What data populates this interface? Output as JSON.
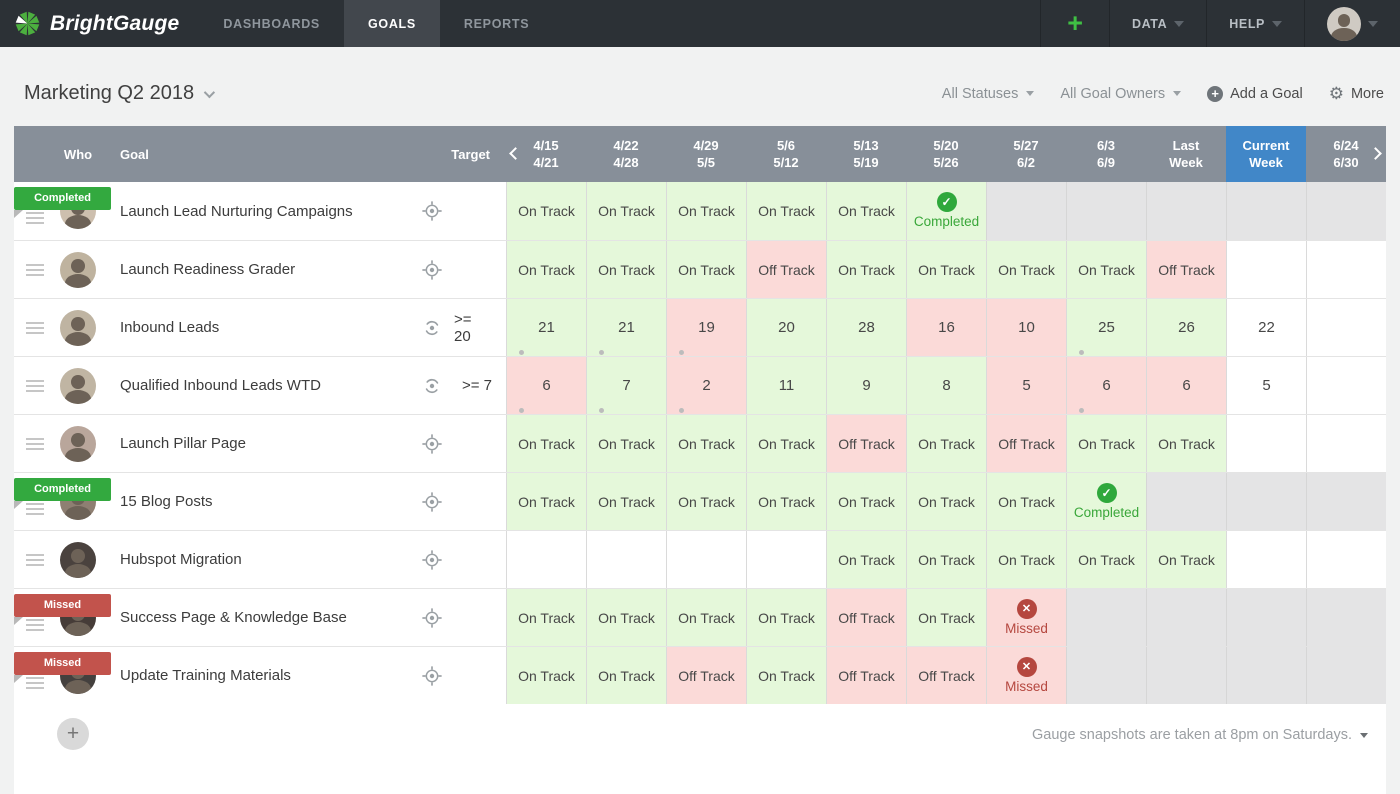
{
  "navbar": {
    "brand": "BrightGauge",
    "tabs": [
      {
        "label": "DASHBOARDS",
        "active": false
      },
      {
        "label": "GOALS",
        "active": true
      },
      {
        "label": "REPORTS",
        "active": false
      }
    ],
    "add_label": "+",
    "menus": [
      {
        "label": "DATA"
      },
      {
        "label": "HELP"
      }
    ]
  },
  "toolbar": {
    "title": "Marketing Q2 2018",
    "filters": [
      {
        "label": "All Statuses"
      },
      {
        "label": "All Goal Owners"
      }
    ],
    "add_goal_label": "Add a Goal",
    "add_goal_icon": "circle-plus-icon",
    "more_label": "More",
    "more_icon": "gear-icon"
  },
  "table": {
    "headers": {
      "who": "Who",
      "goal": "Goal",
      "target": "Target"
    },
    "weeks": [
      {
        "top": "4/15",
        "bottom": "4/21",
        "current": false
      },
      {
        "top": "4/22",
        "bottom": "4/28",
        "current": false
      },
      {
        "top": "4/29",
        "bottom": "5/5",
        "current": false
      },
      {
        "top": "5/6",
        "bottom": "5/12",
        "current": false
      },
      {
        "top": "5/13",
        "bottom": "5/19",
        "current": false
      },
      {
        "top": "5/20",
        "bottom": "5/26",
        "current": false
      },
      {
        "top": "5/27",
        "bottom": "6/2",
        "current": false
      },
      {
        "top": "6/3",
        "bottom": "6/9",
        "current": false
      },
      {
        "top": "Last",
        "bottom": "Week",
        "current": false
      },
      {
        "top": "Current",
        "bottom": "Week",
        "current": true
      },
      {
        "top": "6/24",
        "bottom": "6/30",
        "current": false
      }
    ],
    "status_labels": {
      "on": "On Track",
      "off": "Off Track",
      "completed": "Completed",
      "missed": "Missed"
    },
    "rows": [
      {
        "goal": "Launch Lead Nurturing Campaigns",
        "badge": "completed",
        "badge_label": "Completed",
        "target_icon": "crosshair-target-icon",
        "target": "",
        "avatar_color": "#cdbfae",
        "cells": [
          {
            "type": "on",
            "icon": "notes"
          },
          {
            "type": "on",
            "icon": "notes"
          },
          {
            "type": "on",
            "icon": "notes"
          },
          {
            "type": "on",
            "icon": "notes"
          },
          {
            "type": "on",
            "icon": "notes"
          },
          {
            "type": "completed",
            "icon": "notes"
          },
          {
            "type": "disabled"
          },
          {
            "type": "disabled"
          },
          {
            "type": "disabled"
          },
          {
            "type": "disabled"
          },
          {
            "type": "disabled"
          }
        ]
      },
      {
        "goal": "Launch Readiness Grader",
        "badge": null,
        "target_icon": "crosshair-target-icon",
        "target": "",
        "avatar_color": "#bfb39f",
        "cells": [
          {
            "type": "on",
            "icon": "notes"
          },
          {
            "type": "on",
            "icon": "notes"
          },
          {
            "type": "on",
            "icon": "notes"
          },
          {
            "type": "off",
            "icon": "notes"
          },
          {
            "type": "on",
            "icon": "notes"
          },
          {
            "type": "on",
            "icon": "notes"
          },
          {
            "type": "on",
            "icon": "notes"
          },
          {
            "type": "on",
            "icon": "notes"
          },
          {
            "type": "off",
            "icon": "notes"
          },
          {
            "type": "empty"
          },
          {
            "type": "empty"
          }
        ]
      },
      {
        "goal": "Inbound Leads",
        "badge": null,
        "target_icon": "sync-target-icon",
        "target": ">= 20",
        "avatar_color": "#bfb4a2",
        "cells": [
          {
            "type": "good",
            "value": "21",
            "icon": "person"
          },
          {
            "type": "good",
            "value": "21",
            "icon": "person"
          },
          {
            "type": "bad",
            "value": "19",
            "icon": "person"
          },
          {
            "type": "good",
            "value": "20",
            "icon": "notes"
          },
          {
            "type": "good",
            "value": "28",
            "icon": "notes"
          },
          {
            "type": "bad",
            "value": "16"
          },
          {
            "type": "bad",
            "value": "10"
          },
          {
            "type": "good",
            "value": "25",
            "icon": "person"
          },
          {
            "type": "good",
            "value": "26"
          },
          {
            "type": "plain",
            "value": "22"
          },
          {
            "type": "empty"
          }
        ]
      },
      {
        "goal": "Qualified Inbound Leads WTD",
        "badge": null,
        "target_icon": "sync-target-icon",
        "target": ">= 7",
        "avatar_color": "#c0b5a3",
        "cells": [
          {
            "type": "bad",
            "value": "6",
            "icon": "person"
          },
          {
            "type": "good",
            "value": "7",
            "icon": "person"
          },
          {
            "type": "bad",
            "value": "2",
            "icon": "person"
          },
          {
            "type": "good",
            "value": "11",
            "icon": "notes"
          },
          {
            "type": "good",
            "value": "9"
          },
          {
            "type": "good",
            "value": "8"
          },
          {
            "type": "bad",
            "value": "5"
          },
          {
            "type": "bad",
            "value": "6",
            "icon": "person"
          },
          {
            "type": "bad",
            "value": "6"
          },
          {
            "type": "plain",
            "value": "5"
          },
          {
            "type": "empty"
          }
        ]
      },
      {
        "goal": "Launch Pillar Page",
        "badge": null,
        "target_icon": "crosshair-target-icon",
        "target": "",
        "avatar_color": "#b9a69b",
        "cells": [
          {
            "type": "on",
            "icon": "notes"
          },
          {
            "type": "on",
            "icon": "notes"
          },
          {
            "type": "on",
            "icon": "notes"
          },
          {
            "type": "on",
            "icon": "notes"
          },
          {
            "type": "off",
            "icon": "notes"
          },
          {
            "type": "on",
            "icon": "notes"
          },
          {
            "type": "off",
            "icon": "notes"
          },
          {
            "type": "on",
            "icon": "notes"
          },
          {
            "type": "on",
            "icon": "notes"
          },
          {
            "type": "empty"
          },
          {
            "type": "empty"
          }
        ]
      },
      {
        "goal": "15 Blog Posts",
        "badge": "completed",
        "badge_label": "Completed",
        "target_icon": "crosshair-target-icon",
        "target": "",
        "avatar_color": "#8e7f72",
        "cells": [
          {
            "type": "on",
            "icon": "notes"
          },
          {
            "type": "on",
            "icon": "notes"
          },
          {
            "type": "on",
            "icon": "notes"
          },
          {
            "type": "on",
            "icon": "notes"
          },
          {
            "type": "on",
            "icon": "notes"
          },
          {
            "type": "on",
            "icon": "notes"
          },
          {
            "type": "on",
            "icon": "notes"
          },
          {
            "type": "completed",
            "icon": "notes"
          },
          {
            "type": "disabled"
          },
          {
            "type": "disabled"
          },
          {
            "type": "disabled"
          }
        ]
      },
      {
        "goal": "Hubspot Migration",
        "badge": null,
        "target_icon": "crosshair-target-icon",
        "target": "",
        "avatar_color": "#4a423e",
        "cells": [
          {
            "type": "empty"
          },
          {
            "type": "empty"
          },
          {
            "type": "empty"
          },
          {
            "type": "empty"
          },
          {
            "type": "on"
          },
          {
            "type": "on"
          },
          {
            "type": "on"
          },
          {
            "type": "on"
          },
          {
            "type": "on"
          },
          {
            "type": "empty"
          },
          {
            "type": "empty"
          }
        ]
      },
      {
        "goal": "Success Page & Knowledge Base",
        "badge": "missed",
        "badge_label": "Missed",
        "target_icon": "crosshair-target-icon",
        "target": "",
        "avatar_color": "#463c38",
        "cells": [
          {
            "type": "on",
            "icon": "notes"
          },
          {
            "type": "on",
            "icon": "notes"
          },
          {
            "type": "on",
            "icon": "notes"
          },
          {
            "type": "on",
            "icon": "notes"
          },
          {
            "type": "off",
            "icon": "notes"
          },
          {
            "type": "on",
            "icon": "notes"
          },
          {
            "type": "missed"
          },
          {
            "type": "disabled"
          },
          {
            "type": "disabled"
          },
          {
            "type": "disabled"
          },
          {
            "type": "disabled"
          }
        ]
      },
      {
        "goal": "Update Training Materials",
        "badge": "missed",
        "badge_label": "Missed",
        "target_icon": "crosshair-target-icon",
        "target": "",
        "avatar_color": "#44403e",
        "cells": [
          {
            "type": "on",
            "icon": "notes"
          },
          {
            "type": "on",
            "icon": "notes"
          },
          {
            "type": "off",
            "icon": "notes"
          },
          {
            "type": "on",
            "icon": "notes"
          },
          {
            "type": "off",
            "icon": "notes"
          },
          {
            "type": "off",
            "icon": "notes"
          },
          {
            "type": "missed"
          },
          {
            "type": "disabled"
          },
          {
            "type": "disabled"
          },
          {
            "type": "disabled"
          },
          {
            "type": "disabled"
          }
        ]
      }
    ]
  },
  "footer": {
    "add_row_label": "+",
    "snapshot_note": "Gauge snapshots are taken at 8pm on Saturdays."
  },
  "icons": {
    "notes": "note-lines-icon",
    "person": "person-icon",
    "check": "check-circle-icon",
    "cross": "x-circle-icon"
  },
  "colors": {
    "nav_bg": "#2c3136",
    "nav_active": "#42474d",
    "brand_green": "#4caf3f",
    "header_gray": "#878f99",
    "current_week_blue": "#4187c8",
    "on_track_bg": "#e5f8da",
    "off_track_bg": "#fbdad8",
    "disabled_bg": "#e4e4e5",
    "completed_green": "#2fa83c",
    "missed_red": "#b5473f",
    "badge_green": "#33a93f",
    "badge_red": "#c2534c"
  }
}
